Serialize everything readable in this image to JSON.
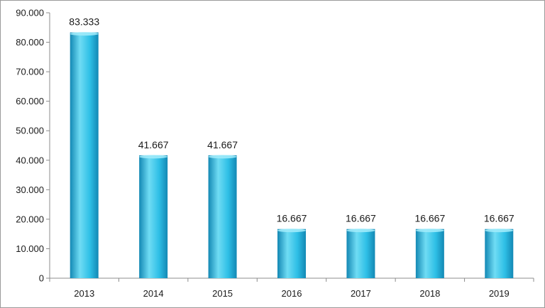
{
  "chart_data": {
    "type": "bar",
    "categories": [
      "2013",
      "2014",
      "2015",
      "2016",
      "2017",
      "2018",
      "2019"
    ],
    "values": [
      83.333,
      41.667,
      41.667,
      16.667,
      16.667,
      16.667,
      16.667
    ],
    "value_labels": [
      "83.333",
      "41.667",
      "41.667",
      "16.667",
      "16.667",
      "16.667",
      "16.667"
    ],
    "y_tick_values": [
      0,
      10,
      20,
      30,
      40,
      50,
      60,
      70,
      80,
      90
    ],
    "y_tick_labels": [
      "0",
      "10.000",
      "20.000",
      "30.000",
      "40.000",
      "50.000",
      "60.000",
      "70.000",
      "80.000",
      "90.000"
    ],
    "ylim": [
      0,
      90
    ],
    "title": "",
    "xlabel": "",
    "ylabel": "",
    "grid": false,
    "legend": "none",
    "colors": {
      "bar_light": "#6fdcf4",
      "bar_mid": "#2ebfe6",
      "bar_dark": "#1388b4",
      "bar_top": "#9eeaf9",
      "axis": "#8c8c8c"
    }
  }
}
